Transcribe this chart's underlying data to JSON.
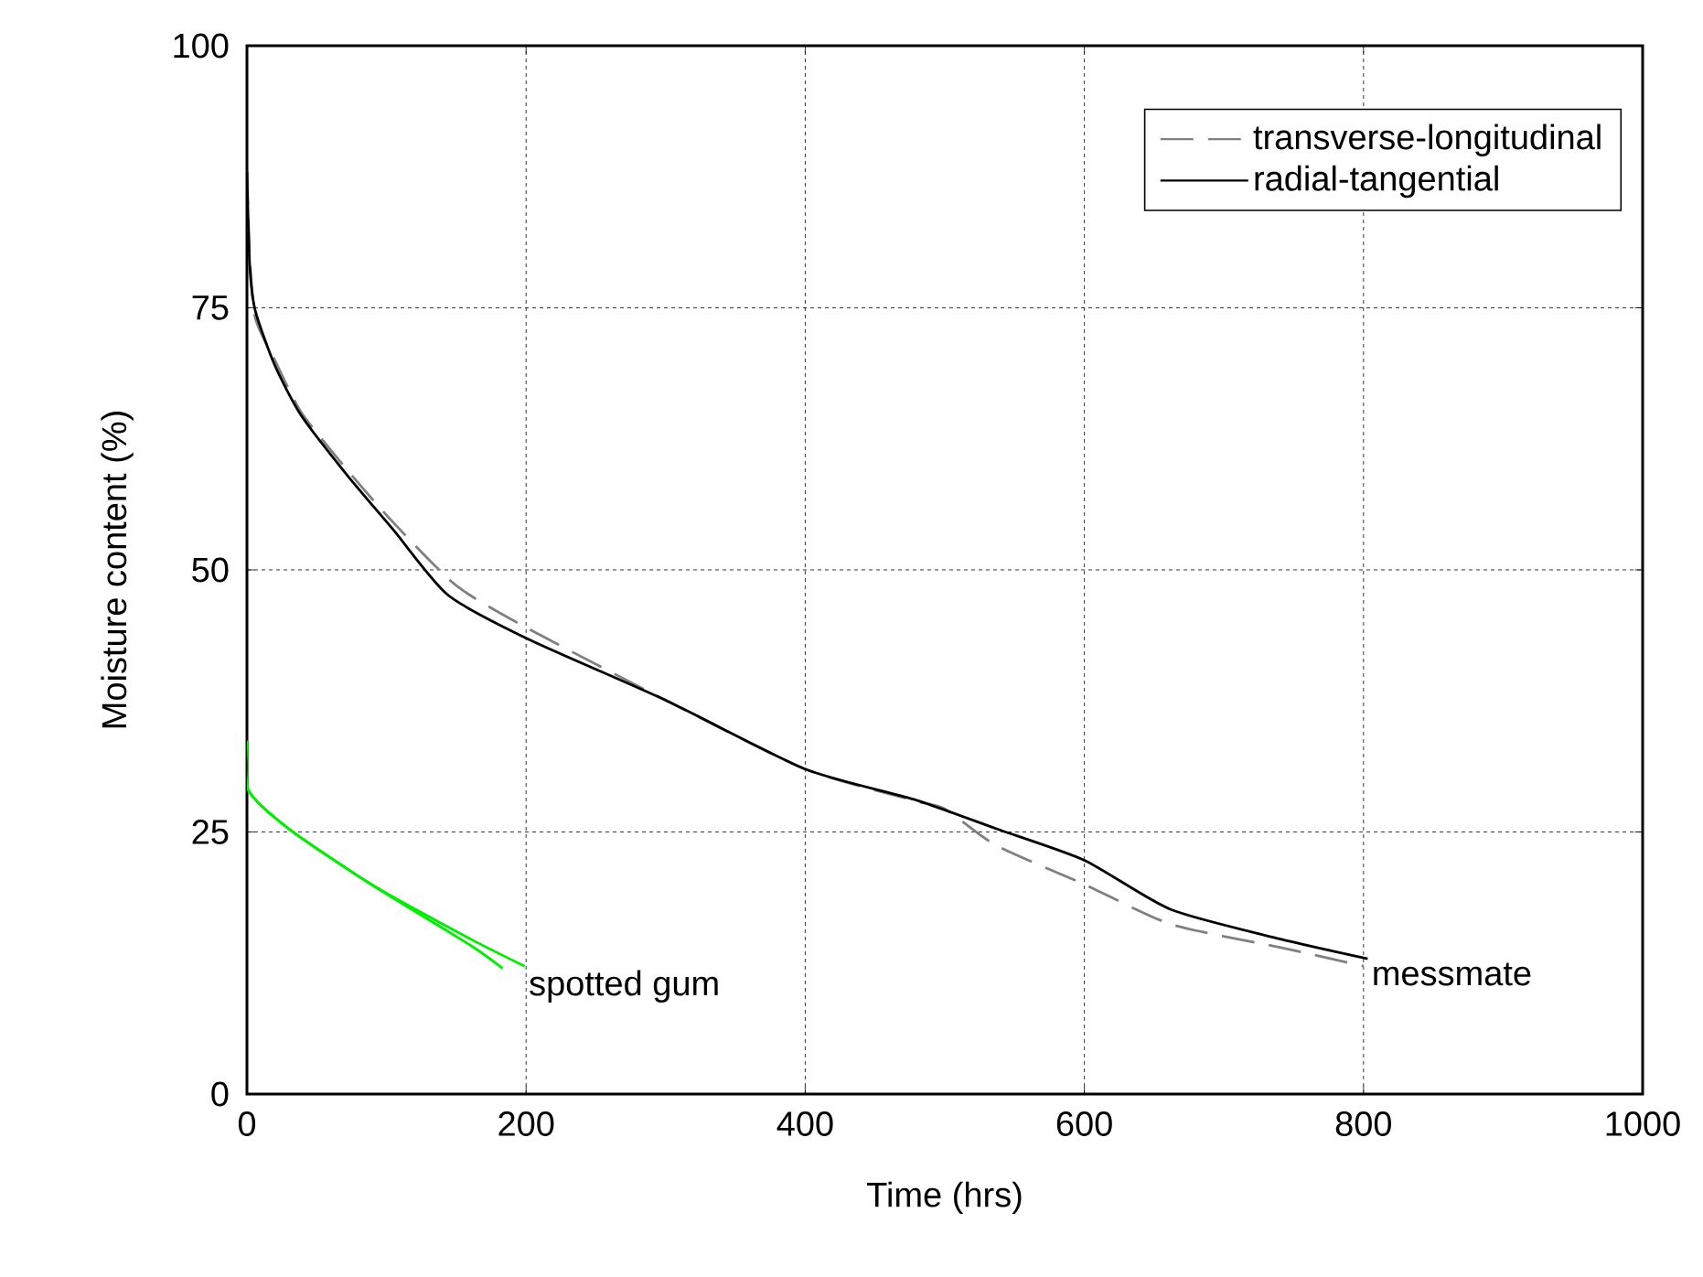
{
  "chart_data": {
    "type": "line",
    "xlabel": "Time (hrs)",
    "ylabel": "Moisture content (%)",
    "xlim": [
      0,
      1000
    ],
    "ylim": [
      0,
      100
    ],
    "xticks": [
      0,
      200,
      400,
      600,
      800,
      1000
    ],
    "yticks": [
      0,
      25,
      50,
      75,
      100
    ],
    "grid": true,
    "legend": "top right",
    "line_style": "solid",
    "marker": "none",
    "series": [
      {
        "name": "transverse-longitudinal",
        "color": "#808080",
        "line_style": "dashed",
        "x": [
          0,
          2,
          6,
          20,
          39,
          72,
          105,
          150,
          200,
          301,
          400,
          478,
          500,
          537,
          600,
          662,
          740,
          800
        ],
        "values": [
          88,
          80,
          74,
          70,
          65,
          59.5,
          54.5,
          48.5,
          44.5,
          37.5,
          31,
          28,
          27.2,
          23.7,
          20,
          16.2,
          14,
          12.2
        ]
      },
      {
        "name": "radial-tangential",
        "color": "#000000",
        "x": [
          0,
          2,
          6,
          20,
          39,
          72,
          105,
          144,
          203,
          301,
          400,
          478,
          537,
          600,
          662,
          740,
          803
        ],
        "values": [
          88,
          79,
          74.7,
          69.5,
          64.7,
          59,
          53.8,
          47.6,
          43.3,
          37.5,
          31,
          28.1,
          25.3,
          22.3,
          17.6,
          14.8,
          12.9
        ]
      },
      {
        "color": "#00ee00",
        "x": [
          0,
          1,
          30,
          89,
          160,
          199
        ],
        "values": [
          33.7,
          29,
          25.3,
          20,
          14.8,
          12.2
        ]
      },
      {
        "color": "#00ee00",
        "x": [
          0,
          1,
          30,
          89,
          160,
          183
        ],
        "values": [
          33.7,
          29,
          25.3,
          20,
          14.2,
          12
        ]
      }
    ],
    "annotations": [
      {
        "text": "spotted gum",
        "x": 199,
        "y": 12.2
      },
      {
        "text": "messmate",
        "x": 803,
        "y": 12.9
      }
    ]
  }
}
